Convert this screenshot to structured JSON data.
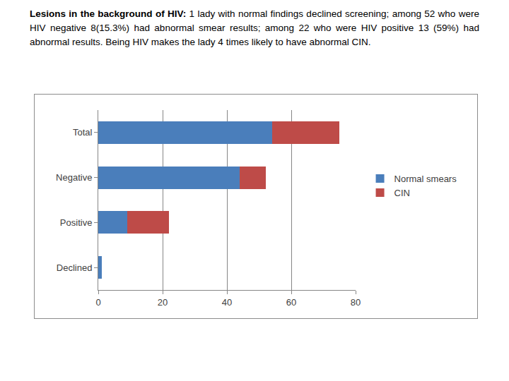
{
  "paragraph": {
    "heading": "Lesions in the background of HIV:",
    "body": "1 lady with normal findings declined screening; among 52 who were HIV negative  8(15.3%) had abnormal smear results; among 22 who were HIV positive 13 (59%) had abnormal results. Being HIV makes the lady 4 times likely to have abnormal CIN."
  },
  "chart_data": {
    "type": "bar",
    "orientation": "horizontal",
    "stacked": true,
    "categories": [
      "Total",
      "Negative",
      "Positive",
      "Declined"
    ],
    "series": [
      {
        "name": "Normal smears",
        "color": "#4a7ebb",
        "values": [
          54,
          44,
          9,
          1
        ]
      },
      {
        "name": "CIN",
        "color": "#be4b48",
        "values": [
          21,
          8,
          13,
          0
        ]
      }
    ],
    "xlim": [
      0,
      80
    ],
    "xticks": [
      0,
      20,
      40,
      60,
      80
    ],
    "grid": true,
    "legend": "right"
  }
}
